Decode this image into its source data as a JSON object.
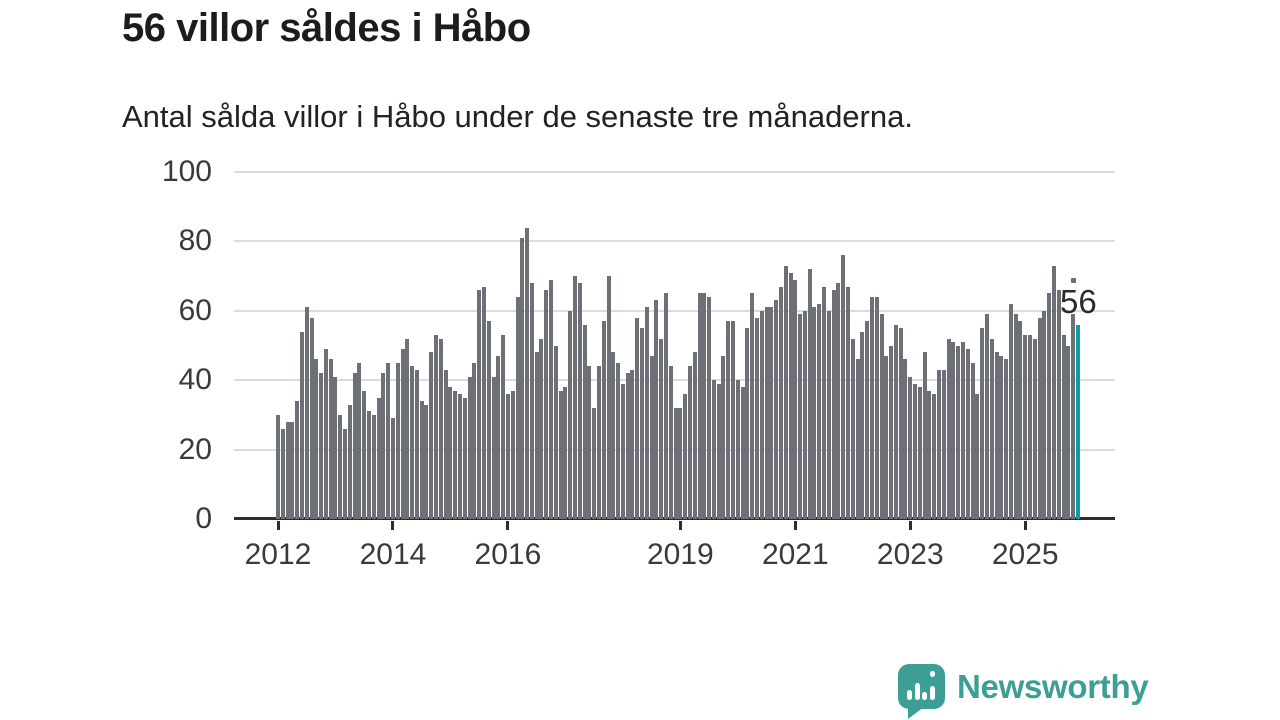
{
  "header": {
    "title": "56 villor såldes i Håbo",
    "subtitle": "Antal sålda villor i Håbo under de senaste tre månaderna."
  },
  "chart_data": {
    "type": "bar",
    "title": "56 villor såldes i Håbo",
    "subtitle": "Antal sålda villor i Håbo under de senaste tre månaderna.",
    "unit": "villor",
    "x_start": "2012-01",
    "x_end": "2025-12",
    "x_frequency": "monthly",
    "ylim": [
      0,
      100
    ],
    "yticks": [
      0,
      20,
      40,
      60,
      80,
      100
    ],
    "grid": "horizontal",
    "xticks": [
      {
        "label": "2012",
        "month_index": 0
      },
      {
        "label": "2014",
        "month_index": 24
      },
      {
        "label": "2016",
        "month_index": 48
      },
      {
        "label": "2019",
        "month_index": 84
      },
      {
        "label": "2021",
        "month_index": 108
      },
      {
        "label": "2023",
        "month_index": 132
      },
      {
        "label": "2025",
        "month_index": 156
      }
    ],
    "values": [
      30,
      26,
      28,
      28,
      34,
      54,
      61,
      58,
      46,
      42,
      49,
      46,
      41,
      30,
      26,
      33,
      42,
      45,
      37,
      31,
      30,
      35,
      42,
      45,
      29,
      45,
      49,
      52,
      44,
      43,
      34,
      33,
      48,
      53,
      52,
      43,
      38,
      37,
      36,
      35,
      41,
      45,
      66,
      67,
      57,
      41,
      47,
      53,
      36,
      37,
      64,
      81,
      84,
      68,
      48,
      52,
      66,
      69,
      50,
      37,
      38,
      60,
      70,
      68,
      56,
      44,
      32,
      44,
      57,
      70,
      48,
      45,
      39,
      42,
      43,
      58,
      55,
      61,
      47,
      63,
      52,
      65,
      44,
      32,
      32,
      36,
      44,
      48,
      65,
      65,
      64,
      40,
      39,
      47,
      57,
      57,
      40,
      38,
      55,
      65,
      58,
      60,
      61,
      61,
      63,
      67,
      73,
      71,
      69,
      59,
      60,
      72,
      61,
      62,
      67,
      60,
      66,
      68,
      76,
      67,
      52,
      46,
      54,
      57,
      64,
      64,
      59,
      47,
      50,
      56,
      55,
      46,
      41,
      39,
      38,
      48,
      37,
      36,
      43,
      43,
      52,
      51,
      50,
      51,
      49,
      45,
      36,
      55,
      59,
      52,
      48,
      47,
      46,
      62,
      59,
      57,
      53,
      53,
      52,
      58,
      60,
      65,
      73,
      66,
      53,
      50,
      59,
      56
    ],
    "highlight_last": true,
    "annotation": {
      "label": "56"
    },
    "colors": {
      "bar": "#6d7076",
      "highlight": "#0f9c9c",
      "gridline": "#dcdcde",
      "axis": "#2e2e2e"
    }
  },
  "footer": {
    "brand": "Newsworthy",
    "brand_color": "#3d9e95"
  }
}
